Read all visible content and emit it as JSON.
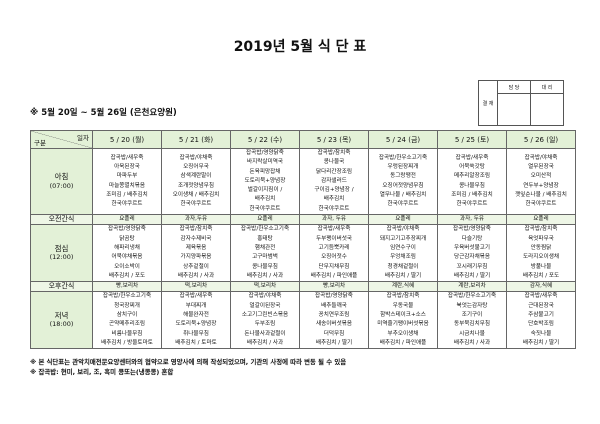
{
  "title": "2019년 5월 식 단 표",
  "approval": {
    "label": "결 재",
    "col1": "담 당",
    "col2": "대 리"
  },
  "subtitle": "※ 5월 20일 ~ 5월 26일 (은천요양원)",
  "header": {
    "date_label": "일자",
    "category_label": "구분",
    "days": [
      "5 / 20 (월)",
      "5 / 21 (화)",
      "5 / 22 (수)",
      "5 / 23 (목)",
      "5 / 24 (금)",
      "5 / 25 (토)",
      "5 / 26 (일)"
    ]
  },
  "rows": [
    {
      "label": "아침",
      "time": "(07:00)",
      "type": "meal",
      "cells": [
        [
          "잡곡밥/새우죽",
          "아욱된장국",
          "마파두부",
          "마늘쫑멸치볶음",
          "조미김 / 배추김치",
          "한국야쿠르트"
        ],
        [
          "잡곡밥/야채죽",
          "오징어무국",
          "삼색계란말이",
          "조개젓양념무침",
          "오이생채 / 배추김치",
          "한국야쿠르트"
        ],
        [
          "잡곡밥/영양닭죽",
          "바지락살미역국",
          "돈육피망잡채",
          "도토리묵+양념장",
          "벌갈이지짐이 /",
          "배추김치",
          "한국야쿠르트"
        ],
        [
          "잡곡밥/참치죽",
          "콩나물국",
          "닭다리간장조림",
          "감자샐러드",
          "구이김+양념장 /",
          "배추김치",
          "한국야쿠르트"
        ],
        [
          "잡곡밥/한우소고기죽",
          "우렁된장찌개",
          "동그랑땡전",
          "오징어젓양념무침",
          "열무나물 / 배추김치",
          "한국야쿠르트"
        ],
        [
          "잡곡밥/새우죽",
          "어묵쑥갓탕",
          "메추리알장조림",
          "콩나물무침",
          "조미김 / 배추김치",
          "한국야쿠르트"
        ],
        [
          "잡곡밥/야채죽",
          "열무된장국",
          "오미산적",
          "연두부+양념장",
          "깻잎순나물 / 배추김치",
          "한국야쿠르트"
        ]
      ]
    },
    {
      "label": "오전간식",
      "type": "snack",
      "cells": [
        [
          "요플레"
        ],
        [
          "과자,두유"
        ],
        [
          "요플레"
        ],
        [
          "과자, 두유"
        ],
        [
          "요플레"
        ],
        [
          "과자, 두유"
        ],
        [
          "요플레"
        ]
      ]
    },
    {
      "label": "점심",
      "time": "(12:00)",
      "type": "meal",
      "cells": [
        [
          "잡곡밥/영양닭죽",
          "닭곰탕",
          "해파리냉채",
          "어묵야채볶음",
          "오이소박이",
          "배추김치 / 포도"
        ],
        [
          "잡곡밥/참치죽",
          "감자수제비국",
          "제육볶음",
          "가지양파볶음",
          "상추겉절이",
          "배추김치 / 사과"
        ],
        [
          "잡곡밥/한우소고기죽",
          "홍태탕",
          "햄채관전",
          "고구마범벅",
          "콩나물무침",
          "배추김치 / 사과"
        ],
        [
          "잡곡밥/새우죽",
          "두부팽이버섯국",
          "고기듬뿍카레",
          "오징어젓수",
          "단무지채무침",
          "배추김치 / 파인애플"
        ],
        [
          "잡곡밥/야채죽",
          "돼지고기고추장찌개",
          "임연수구이",
          "우엉채조림",
          "청경채겉절이",
          "배추김치 / 딸기"
        ],
        [
          "잡곡밥/영양닭죽",
          "다슬기탕",
          "우육버섯불고기",
          "당근감자채볶음",
          "꼬시래기무침",
          "배추김치 / 딸기"
        ],
        [
          "잡곡밥/참치죽",
          "육엇파무국",
          "안동찜닭",
          "도라지오이생채",
          "방풀나물",
          "배추김치 / 포도"
        ]
      ]
    },
    {
      "label": "오후간식",
      "type": "snack",
      "cells": [
        [
          "빵,보리차"
        ],
        [
          "떡,보리차"
        ],
        [
          "떡,보리차"
        ],
        [
          "빵,보리차"
        ],
        [
          "계란,식혜"
        ],
        [
          "계란,보리차"
        ],
        [
          "감자,식혜"
        ]
      ]
    },
    {
      "label": "저녁",
      "time": "(18:00)",
      "type": "meal",
      "cells": [
        [
          "잡곡밥/한우소고기죽",
          "청국장찌개",
          "삼치구이",
          "곤약메추리조림",
          "비름나물무침",
          "배추김치 / 방울토마토"
        ],
        [
          "잡곡밥/새우죽",
          "부대찌개",
          "해물완자전",
          "도토리묵+양념장",
          "취나물무침",
          "배추김치 / 토마토"
        ],
        [
          "잡곡밥/야채죽",
          "얼갈이된장국",
          "소고기그린빈스볶음",
          "두부조림",
          "돈나물사과겉절이",
          "배추김치 / 사과"
        ],
        [
          "잡곡밥/영양닭죽",
          "배추들깨국",
          "꽁치연무조림",
          "새송이버섯볶음",
          "더덕무침",
          "배추김치 / 딸기"
        ],
        [
          "잡곡밥/참치죽",
          "우동국물",
          "함박스테이크+소스",
          "미역줄기팽이버섯볶음",
          "부추오이생채",
          "배추김치 / 파인애플"
        ],
        [
          "잡곡밥/한우소고기죽",
          "북엇는감자탕",
          "조기구이",
          "동부묵김치무침",
          "시금치나물",
          "배추김치 / 사과"
        ],
        [
          "잡곡밥/새우죽",
          "근대된장국",
          "주삼불고기",
          "단호박조림",
          "숙짓나물",
          "배추김치 / 딸기"
        ]
      ]
    }
  ],
  "notes": [
    "※ 본 식단표는 관악치매전문요양센터와의 협약으로 영양사에 의해 작성되었으며, 기관의 사정에 따라 변동 될 수 있음",
    "※ 잡곡밥: 현미, 보리, 조, 흑미 콩또는(냉콩콩) 혼합"
  ],
  "colors": {
    "header_bg": "#e3f1d7",
    "snack_bg": "#eef6e6"
  }
}
